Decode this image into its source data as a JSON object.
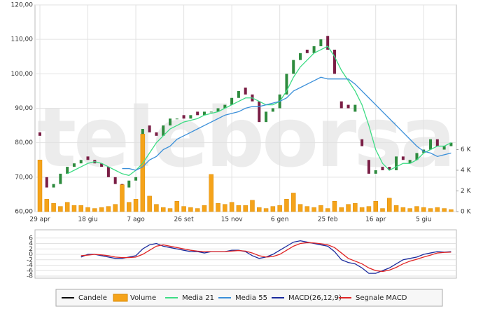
{
  "chart_data": [
    {
      "type": "candlestick",
      "watermark": "teleborsa",
      "categories": [
        "29 apr",
        null,
        null,
        null,
        null,
        null,
        null,
        "18 giu",
        null,
        null,
        null,
        null,
        null,
        null,
        "7 ago",
        null,
        null,
        null,
        null,
        null,
        null,
        "26 set",
        null,
        null,
        null,
        null,
        null,
        null,
        "15 nov",
        null,
        null,
        null,
        null,
        null,
        null,
        "6 gen",
        null,
        null,
        null,
        null,
        null,
        null,
        "25 feb",
        null,
        null,
        null,
        null,
        null,
        null,
        "16 apr",
        null,
        null,
        null,
        null,
        null,
        null,
        "5 giu",
        null,
        null,
        null,
        null
      ],
      "ylim": [
        60,
        120
      ],
      "yticks": [
        {
          "value": 60,
          "label": "60,00"
        },
        {
          "value": 70,
          "label": "70,00"
        },
        {
          "value": 80,
          "label": "80,00"
        },
        {
          "value": 90,
          "label": "90,00"
        },
        {
          "value": 100,
          "label": "100,00"
        },
        {
          "value": 110,
          "label": "110,00"
        },
        {
          "value": 120,
          "label": "120,00"
        }
      ],
      "y2lim": [
        0,
        20000
      ],
      "y2ticks": [
        {
          "value": 0,
          "label": "0 K"
        },
        {
          "value": 2000,
          "label": "2 K"
        },
        {
          "value": 4000,
          "label": "4 K"
        },
        {
          "value": 6000,
          "label": "6 K"
        }
      ],
      "grid": true,
      "series": [
        {
          "name": "Candele",
          "color": "#000000",
          "up_color": "#2e8b3e",
          "down_color": "#7a1e45",
          "open": [
            83,
            70,
            67,
            68,
            71,
            73,
            74,
            76,
            75,
            74,
            73,
            70,
            68,
            67,
            69,
            71,
            85,
            83,
            82,
            85,
            87,
            88,
            87,
            89,
            88,
            89,
            89,
            90,
            91,
            93,
            96,
            94,
            92,
            86,
            89,
            90,
            94,
            100,
            104,
            107,
            106,
            108,
            111,
            107,
            92,
            91,
            89,
            81,
            75,
            71,
            73,
            73,
            72,
            76,
            74,
            75,
            77,
            78,
            81,
            78,
            79
          ],
          "close": [
            82,
            67,
            68,
            71,
            73,
            74,
            75,
            75,
            74,
            73,
            70,
            68,
            67,
            69,
            70,
            84,
            83,
            82,
            85,
            87,
            87,
            87,
            88,
            88,
            89,
            89,
            90,
            91,
            93,
            95,
            94,
            92,
            86,
            89,
            90,
            94,
            100,
            104,
            106,
            106,
            108,
            110,
            107,
            100,
            90,
            90,
            91,
            79,
            71,
            72,
            72,
            72,
            76,
            75,
            75,
            77,
            78,
            81,
            79,
            79,
            80
          ]
        },
        {
          "name": "Volume",
          "color": "#f5a31a",
          "axis": "y2",
          "values": [
            5000,
            1200,
            800,
            500,
            900,
            600,
            600,
            400,
            300,
            400,
            500,
            700,
            2600,
            900,
            1200,
            7500,
            1500,
            700,
            400,
            300,
            1000,
            500,
            400,
            300,
            600,
            3600,
            800,
            700,
            900,
            600,
            600,
            1100,
            400,
            300,
            500,
            600,
            1200,
            1800,
            700,
            500,
            400,
            600,
            300,
            1000,
            400,
            700,
            800,
            400,
            500,
            1000,
            300,
            1300,
            600,
            400,
            300,
            500,
            400,
            300,
            400,
            300,
            200
          ]
        },
        {
          "name": "Media 21",
          "color": "#3ddc84",
          "values": [
            null,
            null,
            null,
            null,
            71,
            72,
            73,
            74,
            74.5,
            74,
            73,
            72,
            71,
            70.5,
            72,
            74,
            77,
            80,
            82,
            84,
            85,
            86,
            86.5,
            87,
            88,
            88.5,
            89,
            90,
            91,
            92,
            93,
            93,
            92,
            91,
            91,
            92,
            95,
            99,
            102,
            104,
            106,
            107,
            108,
            105,
            101,
            98,
            95,
            91,
            85,
            78,
            74,
            72,
            73,
            74,
            74,
            75,
            77,
            78,
            79,
            79,
            80
          ]
        },
        {
          "name": "Media 55",
          "color": "#3a8fd9",
          "values": [
            null,
            null,
            null,
            null,
            null,
            null,
            null,
            null,
            null,
            null,
            null,
            null,
            72.5,
            72.5,
            72,
            73,
            75,
            76,
            78,
            79,
            81,
            82,
            83,
            84,
            85,
            86,
            87,
            88,
            88.5,
            89,
            90,
            90.5,
            90.5,
            91,
            91.5,
            92,
            93,
            95,
            96,
            97,
            98,
            99,
            98.5,
            98.5,
            98.5,
            98.5,
            97,
            95,
            93,
            91,
            89,
            87,
            85,
            83,
            81,
            79,
            77.5,
            77,
            76,
            76.5,
            77
          ]
        }
      ]
    },
    {
      "type": "line",
      "categories": [
        null,
        null,
        null,
        null,
        null,
        null,
        null,
        null,
        null,
        null,
        null,
        null,
        null,
        null,
        null,
        null,
        null,
        null,
        null,
        null,
        null,
        null,
        null,
        null,
        null,
        null,
        null,
        null,
        null,
        null,
        null,
        null,
        null,
        null,
        null,
        null,
        null,
        null,
        null,
        null,
        null,
        null,
        null,
        null,
        null,
        null,
        null,
        null,
        null,
        null,
        null,
        null,
        null,
        null,
        null,
        null,
        null,
        null,
        null,
        null,
        null
      ],
      "ylim": [
        -8,
        8
      ],
      "yticks": [
        6,
        4,
        2,
        0,
        -2,
        -4,
        -6,
        -8
      ],
      "grid": true,
      "legend": "bottom",
      "series": [
        {
          "name": "MACD(26,12,9)",
          "color": "#1a2a9c",
          "values": [
            null,
            null,
            null,
            null,
            null,
            null,
            -1,
            0,
            0,
            -0.5,
            -1,
            -1.5,
            -1.5,
            -1,
            -0.5,
            2,
            3.5,
            4,
            3,
            2.5,
            2,
            1.5,
            1,
            1,
            0.5,
            1,
            1,
            1,
            1.5,
            1.5,
            1,
            -0.5,
            -1.5,
            -1,
            0,
            1.5,
            3,
            4.5,
            5,
            4.5,
            4,
            3.5,
            3,
            1,
            -2,
            -3,
            -3.5,
            -5,
            -7,
            -7,
            -6,
            -5,
            -3.5,
            -2,
            -1.5,
            -1,
            0,
            0.5,
            1,
            0.8,
            1
          ]
        },
        {
          "name": "Segnale MACD",
          "color": "#e02424",
          "values": [
            null,
            null,
            null,
            null,
            null,
            null,
            -0.5,
            -0.3,
            0,
            -0.2,
            -0.5,
            -1,
            -1.2,
            -1.2,
            -1,
            0,
            1.5,
            3,
            3.5,
            3,
            2.5,
            2,
            1.5,
            1.2,
            1,
            1,
            1,
            1,
            1.2,
            1.4,
            1.2,
            0.5,
            -0.5,
            -1,
            -0.8,
            0,
            1.5,
            3,
            4,
            4.3,
            4.2,
            3.9,
            3.5,
            2.5,
            0.5,
            -1.5,
            -2.5,
            -3.5,
            -5,
            -6,
            -6.3,
            -5.8,
            -4.8,
            -3.5,
            -2.5,
            -1.8,
            -1,
            -0.3,
            0.5,
            0.7,
            0.8
          ]
        }
      ]
    }
  ]
}
